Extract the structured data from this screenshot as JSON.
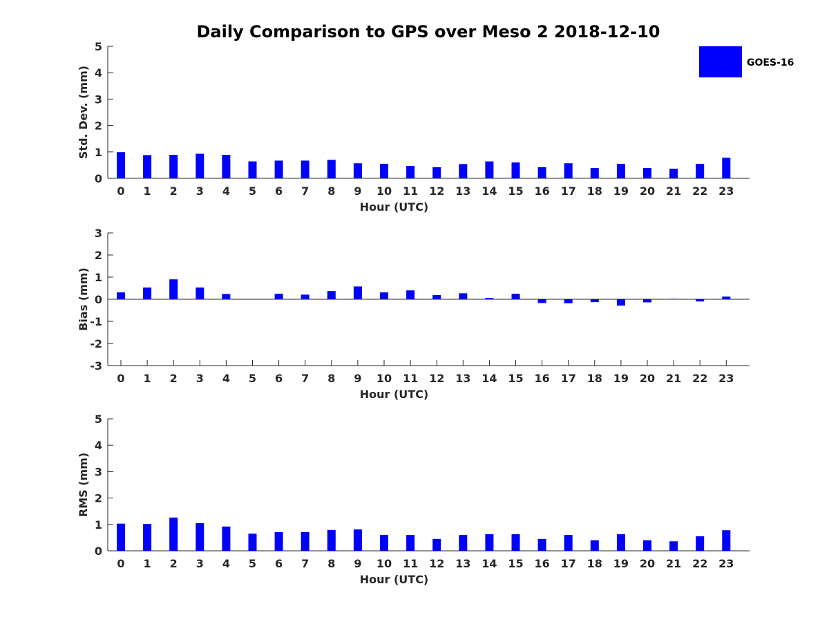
{
  "title": "Daily Comparison to GPS over Meso 2 2018-12-10",
  "colors": {
    "bar": "#0000ff",
    "axis": "#262626",
    "background": "#ffffff"
  },
  "legend": {
    "label": "GOES-16",
    "placement": "top-right"
  },
  "chart_data": [
    {
      "type": "bar",
      "title": "Daily Comparison to GPS over Meso 2 2018-12-10",
      "xlabel": "Hour (UTC)",
      "ylabel": "Std. Dev. (mm)",
      "ylim": [
        0,
        5
      ],
      "yticks": [
        0,
        1,
        2,
        3,
        4,
        5
      ],
      "categories": [
        "0",
        "1",
        "2",
        "3",
        "4",
        "5",
        "6",
        "7",
        "8",
        "9",
        "10",
        "11",
        "12",
        "13",
        "14",
        "15",
        "16",
        "17",
        "18",
        "19",
        "20",
        "21",
        "22",
        "23"
      ],
      "series": [
        {
          "name": "GOES-16",
          "values": [
            0.99,
            0.88,
            0.89,
            0.93,
            0.89,
            0.64,
            0.67,
            0.67,
            0.7,
            0.57,
            0.55,
            0.47,
            0.42,
            0.54,
            0.64,
            0.6,
            0.42,
            0.57,
            0.39,
            0.55,
            0.39,
            0.36,
            0.55,
            0.78
          ]
        }
      ]
    },
    {
      "type": "bar",
      "title": "",
      "xlabel": "Hour (UTC)",
      "ylabel": "Bias (mm)",
      "ylim": [
        -3,
        3
      ],
      "yticks": [
        -3,
        -2,
        -1,
        0,
        1,
        2,
        3
      ],
      "categories": [
        "0",
        "1",
        "2",
        "3",
        "4",
        "5",
        "6",
        "7",
        "8",
        "9",
        "10",
        "11",
        "12",
        "13",
        "14",
        "15",
        "16",
        "17",
        "18",
        "19",
        "20",
        "21",
        "22",
        "23"
      ],
      "series": [
        {
          "name": "GOES-16",
          "values": [
            0.31,
            0.53,
            0.9,
            0.53,
            0.24,
            0.0,
            0.25,
            0.21,
            0.37,
            0.58,
            0.31,
            0.4,
            0.19,
            0.27,
            0.06,
            0.25,
            -0.17,
            -0.18,
            -0.13,
            -0.29,
            -0.14,
            0.02,
            -0.1,
            0.12
          ]
        }
      ]
    },
    {
      "type": "bar",
      "title": "",
      "xlabel": "Hour (UTC)",
      "ylabel": "RMS (mm)",
      "ylim": [
        0,
        5
      ],
      "yticks": [
        0,
        1,
        2,
        3,
        4,
        5
      ],
      "categories": [
        "0",
        "1",
        "2",
        "3",
        "4",
        "5",
        "6",
        "7",
        "8",
        "9",
        "10",
        "11",
        "12",
        "13",
        "14",
        "15",
        "16",
        "17",
        "18",
        "19",
        "20",
        "21",
        "22",
        "23"
      ],
      "series": [
        {
          "name": "GOES-16",
          "values": [
            1.03,
            1.02,
            1.26,
            1.05,
            0.92,
            0.65,
            0.71,
            0.71,
            0.79,
            0.81,
            0.6,
            0.6,
            0.45,
            0.6,
            0.63,
            0.63,
            0.45,
            0.6,
            0.4,
            0.63,
            0.4,
            0.36,
            0.55,
            0.78
          ]
        }
      ]
    }
  ]
}
